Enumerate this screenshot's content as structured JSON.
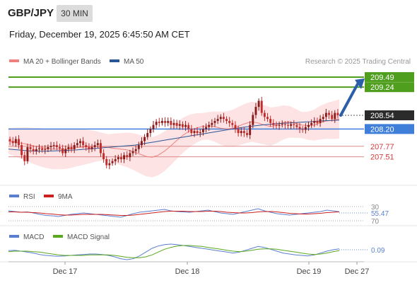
{
  "header": {
    "pair": "GBP/JPY",
    "timeframe": "30 MIN",
    "datetime": "Friday, December 19, 2025 6:45:50 AM CET"
  },
  "legend": {
    "ma_bb": "MA 20 + Bollinger Bands",
    "ma50": "MA 50",
    "credit": "Research © 2025 Trading Central",
    "rsi": "RSI",
    "rsi_ma": "9MA",
    "macd": "MACD",
    "macd_signal": "MACD Signal"
  },
  "colors": {
    "resistance": "#4f9e1d",
    "pivot": "#3f7fd9",
    "support": "#d23b3b",
    "candle_up": "#8a1b1b",
    "candle_down": "#c42b2b",
    "bollinger_fill": "#fde3e3",
    "ma20": "#f08080",
    "ma50": "#2a5597",
    "rsi": "#5b7fd0",
    "rsi_ma": "#cc1f1f",
    "macd": "#5b7fd0",
    "macd_signal": "#5aa81d",
    "arrow": "#2a5ea8",
    "current_price_bg": "#2b2b2b"
  },
  "chart_data": [
    {
      "type": "candlestick",
      "panel": "price",
      "y_range": [
        206.8,
        209.7
      ],
      "x_ticks": [
        "Dec 17",
        "Dec 18",
        "Dec 19",
        "Dec 27"
      ],
      "levels": [
        {
          "label": "209.49",
          "value": 209.49,
          "kind": "resistance"
        },
        {
          "label": "209.24",
          "value": 209.24,
          "kind": "resistance"
        },
        {
          "label": "208.54",
          "value": 208.54,
          "kind": "current"
        },
        {
          "label": "208.20",
          "value": 208.2,
          "kind": "pivot"
        },
        {
          "label": "207.77",
          "value": 207.77,
          "kind": "support"
        },
        {
          "label": "207.51",
          "value": 207.51,
          "kind": "support"
        }
      ],
      "close": [
        207.9,
        207.85,
        207.95,
        207.8,
        207.55,
        207.4,
        207.75,
        207.7,
        207.65,
        207.7,
        207.72,
        207.68,
        207.7,
        207.75,
        207.78,
        207.8,
        207.75,
        207.72,
        207.6,
        207.7,
        207.75,
        207.7,
        207.8,
        207.85,
        207.9,
        207.8,
        207.75,
        207.7,
        207.75,
        207.8,
        207.85,
        207.6,
        207.45,
        207.3,
        207.35,
        207.4,
        207.45,
        207.5,
        207.45,
        207.55,
        207.5,
        207.6,
        207.65,
        207.7,
        207.8,
        207.9,
        208.0,
        208.1,
        208.2,
        208.3,
        208.38,
        208.35,
        208.4,
        208.35,
        208.4,
        208.3,
        208.35,
        208.28,
        208.32,
        208.25,
        208.3,
        208.2,
        208.1,
        208.15,
        208.1,
        208.12,
        208.2,
        208.25,
        208.3,
        208.35,
        208.4,
        208.45,
        208.5,
        208.45,
        208.4,
        208.35,
        208.3,
        208.2,
        208.1,
        208.15,
        208.1,
        208.05,
        208.3,
        208.55,
        208.75,
        208.9,
        208.6,
        208.5,
        208.45,
        208.35,
        208.3,
        208.28,
        208.3,
        208.32,
        208.3,
        208.28,
        208.32,
        208.3,
        208.25,
        208.2,
        208.18,
        208.25,
        208.3,
        208.35,
        208.4,
        208.35,
        208.45,
        208.5,
        208.6,
        208.55,
        208.45,
        208.6,
        208.54
      ],
      "ma20": [
        207.9,
        207.88,
        207.85,
        207.82,
        207.78,
        207.75,
        207.72,
        207.7,
        207.7,
        207.7,
        207.72,
        207.74,
        207.75,
        207.76,
        207.77,
        207.76,
        207.74,
        207.72,
        207.7,
        207.68,
        207.64,
        207.58,
        207.52,
        207.5,
        207.55,
        207.65,
        207.78,
        207.92,
        208.05,
        208.15,
        208.22,
        208.26,
        208.28,
        208.26,
        208.22,
        208.2,
        208.22,
        208.28,
        208.34,
        208.38,
        208.35,
        208.3,
        208.26,
        208.3,
        208.36,
        208.38,
        208.34,
        208.3,
        208.28,
        208.3,
        208.36,
        208.4,
        208.42,
        208.45
      ],
      "ma50": [
        207.7,
        207.68,
        207.66,
        207.65,
        207.65,
        207.66,
        207.67,
        207.68,
        207.7,
        207.72,
        207.74,
        207.76,
        207.78,
        207.8,
        207.84,
        207.88,
        207.92,
        207.96,
        208.0,
        208.04,
        208.08,
        208.12,
        208.16,
        208.2,
        208.24,
        208.27,
        208.3,
        208.32,
        208.34,
        208.35,
        208.37,
        208.38,
        208.4,
        208.41,
        208.42
      ]
    },
    {
      "type": "line",
      "panel": "RSI",
      "y_range": [
        30,
        70
      ],
      "y_ticks": [
        30,
        70
      ],
      "last_value": "55.47",
      "series": [
        {
          "name": "RSI",
          "values": [
            58,
            56,
            54,
            55,
            52,
            48,
            45,
            44,
            42,
            45,
            48,
            50,
            52,
            50,
            48,
            46,
            44,
            42,
            40,
            45,
            50,
            54,
            56,
            58,
            60,
            62,
            58,
            56,
            55,
            54,
            56,
            58,
            60,
            56,
            52,
            50,
            48,
            52,
            56,
            60,
            64,
            58,
            54,
            50,
            48,
            46,
            48,
            50,
            52,
            54,
            56,
            60,
            58,
            55.47
          ]
        },
        {
          "name": "9MA",
          "values": [
            55,
            55,
            54,
            54,
            53,
            52,
            50,
            49,
            47,
            46,
            46,
            47,
            48,
            48,
            48,
            48,
            47,
            46,
            45,
            45,
            46,
            48,
            50,
            52,
            54,
            56,
            57,
            57,
            57,
            56,
            56,
            56,
            57,
            57,
            56,
            54,
            53,
            52,
            52,
            53,
            55,
            56,
            56,
            55,
            53,
            51,
            50,
            49,
            49,
            50,
            51,
            53,
            54,
            55
          ]
        }
      ]
    },
    {
      "type": "line",
      "panel": "MACD",
      "last_value": "0.09",
      "series": [
        {
          "name": "MACD",
          "values": [
            0.05,
            0.06,
            0.04,
            0.02,
            0.0,
            -0.03,
            -0.05,
            -0.06,
            -0.07,
            -0.06,
            -0.05,
            -0.04,
            -0.03,
            -0.02,
            -0.02,
            -0.03,
            -0.05,
            -0.08,
            -0.12,
            -0.14,
            -0.12,
            -0.06,
            0.02,
            0.1,
            0.15,
            0.18,
            0.19,
            0.18,
            0.16,
            0.14,
            0.12,
            0.1,
            0.08,
            0.06,
            0.04,
            0.02,
            0.0,
            0.02,
            0.06,
            0.1,
            0.14,
            0.12,
            0.08,
            0.04,
            0.0,
            -0.02,
            -0.04,
            -0.05,
            -0.06,
            -0.04,
            0.0,
            0.04,
            0.07,
            0.09
          ]
        },
        {
          "name": "MACD Signal",
          "values": [
            0.03,
            0.04,
            0.04,
            0.04,
            0.03,
            0.02,
            0.0,
            -0.02,
            -0.04,
            -0.05,
            -0.05,
            -0.05,
            -0.05,
            -0.04,
            -0.04,
            -0.04,
            -0.04,
            -0.05,
            -0.07,
            -0.09,
            -0.1,
            -0.1,
            -0.08,
            -0.04,
            0.02,
            0.08,
            0.12,
            0.15,
            0.16,
            0.16,
            0.15,
            0.14,
            0.12,
            0.1,
            0.08,
            0.06,
            0.04,
            0.03,
            0.04,
            0.06,
            0.08,
            0.09,
            0.09,
            0.08,
            0.06,
            0.04,
            0.02,
            0.0,
            -0.02,
            -0.03,
            -0.02,
            0.0,
            0.03,
            0.05
          ]
        }
      ]
    }
  ]
}
